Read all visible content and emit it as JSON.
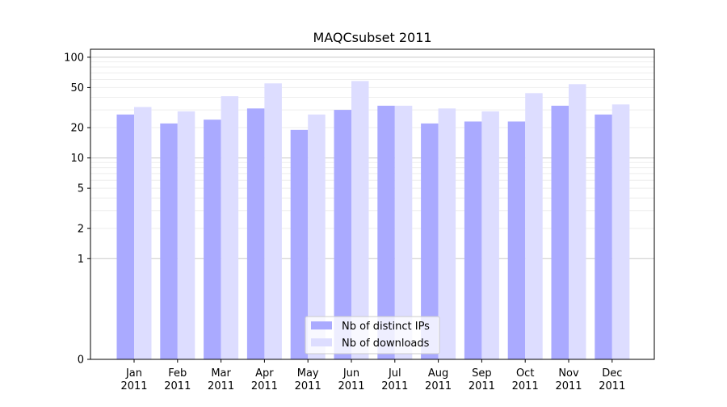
{
  "chart_data": {
    "type": "bar",
    "title": "MAQCsubset 2011",
    "xlabel": "",
    "ylabel": "",
    "y_scale": "symlog",
    "ylim": [
      0,
      120
    ],
    "y_ticks": [
      0,
      1,
      2,
      5,
      10,
      20,
      50,
      100
    ],
    "y_tick_labels": [
      "0",
      "1",
      "2",
      "5",
      "10",
      "20",
      "50",
      "100"
    ],
    "grid": true,
    "legend_position": "bottom-center",
    "categories": [
      "Jan",
      "Feb",
      "Mar",
      "Apr",
      "May",
      "Jun",
      "Jul",
      "Aug",
      "Sep",
      "Oct",
      "Nov",
      "Dec"
    ],
    "year_label": "2011",
    "series": [
      {
        "name": "Nb of distinct IPs",
        "color": "#aaaaff",
        "values": [
          27,
          22,
          24,
          31,
          19,
          30,
          33,
          22,
          23,
          23,
          33,
          27
        ]
      },
      {
        "name": "Nb of downloads",
        "color": "#ddddff",
        "values": [
          32,
          29,
          41,
          55,
          27,
          58,
          33,
          31,
          29,
          44,
          54,
          34
        ]
      }
    ]
  }
}
